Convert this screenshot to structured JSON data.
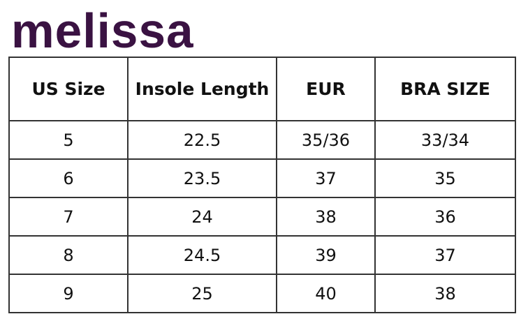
{
  "brand": {
    "logo_text": "melissa",
    "color": "#3a1242"
  },
  "table": {
    "headers": [
      "US Size",
      "Insole Length",
      "EUR",
      "BRA SIZE"
    ],
    "rows": [
      [
        "5",
        "22.5",
        "35/36",
        "33/34"
      ],
      [
        "6",
        "23.5",
        "37",
        "35"
      ],
      [
        "7",
        "24",
        "38",
        "36"
      ],
      [
        "8",
        "24.5",
        "39",
        "37"
      ],
      [
        "9",
        "25",
        "40",
        "38"
      ]
    ]
  }
}
